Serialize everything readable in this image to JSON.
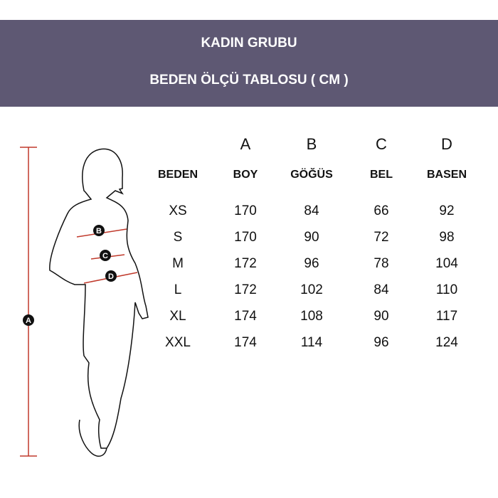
{
  "header": {
    "title": "KADIN GRUBU",
    "subtitle": "BEDEN ÖLÇÜ TABLOSU ( CM )",
    "background_color": "#5e5873"
  },
  "figure": {
    "markers": [
      "A",
      "B",
      "C",
      "D"
    ],
    "line_color": "#c0392b"
  },
  "table": {
    "letters": [
      "",
      "A",
      "B",
      "C",
      "D"
    ],
    "headers": [
      "BEDEN",
      "BOY",
      "GÖĞÜS",
      "BEL",
      "BASEN"
    ],
    "rows": [
      [
        "XS",
        "170",
        "84",
        "66",
        "92"
      ],
      [
        "S",
        "170",
        "90",
        "72",
        "98"
      ],
      [
        "M",
        "172",
        "96",
        "78",
        "104"
      ],
      [
        "L",
        "172",
        "102",
        "84",
        "110"
      ],
      [
        "XL",
        "174",
        "108",
        "90",
        "117"
      ],
      [
        "XXL",
        "174",
        "114",
        "96",
        "124"
      ]
    ]
  }
}
